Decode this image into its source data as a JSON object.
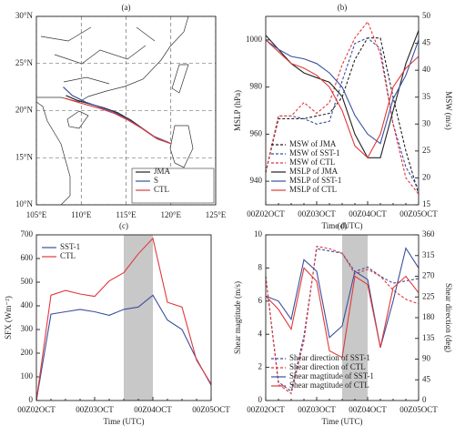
{
  "chart_data": [
    {
      "type": "map",
      "title": "(a)",
      "xlim": [
        105,
        125
      ],
      "ylim": [
        10,
        30
      ],
      "xticks": [
        {
          "value": 105,
          "label": "105°E"
        },
        {
          "value": 110,
          "label": "110°E"
        },
        {
          "value": 115,
          "label": "115°E"
        },
        {
          "value": 120,
          "label": "120°E"
        },
        {
          "value": 125,
          "label": "125°E"
        }
      ],
      "yticks": [
        {
          "value": 10,
          "label": "10°N"
        },
        {
          "value": 15,
          "label": "15°N"
        },
        {
          "value": 20,
          "label": "20°N"
        },
        {
          "value": 25,
          "label": "25°N"
        },
        {
          "value": 30,
          "label": "30°N"
        }
      ],
      "grid": true,
      "legend": "lower right",
      "series": [
        {
          "name": "JMA",
          "color": "#222222",
          "x": [
            120,
            118.5,
            117,
            115.5,
            114,
            112.5,
            111,
            109.5,
            108.3
          ],
          "values": [
            16.5,
            17.0,
            18.0,
            19.0,
            19.8,
            20.3,
            20.7,
            21.1,
            21.6
          ]
        },
        {
          "name": "S",
          "color": "#3a4f9e",
          "x": [
            119.8,
            118,
            116.5,
            115,
            113.5,
            112,
            110.5,
            109,
            108
          ],
          "values": [
            16.6,
            17.3,
            18.3,
            19.2,
            19.9,
            20.4,
            20.9,
            21.6,
            22.5
          ]
        },
        {
          "name": "CTL",
          "color": "#e0393b",
          "x": [
            120,
            118.3,
            116.8,
            115.2,
            113.7,
            112.2,
            110.7,
            109.2,
            108.2
          ],
          "values": [
            16.5,
            17.1,
            18.1,
            19.0,
            19.7,
            20.2,
            20.6,
            21.0,
            21.3
          ]
        }
      ]
    },
    {
      "type": "line",
      "title": "(b)",
      "xlabel": "Time (UTC)",
      "ylabel": "MSLP (hPa)",
      "y2label": "MSW (m/s)",
      "categories": [
        "00Z02OCT",
        null,
        null,
        null,
        "00Z03OCT",
        null,
        null,
        null,
        "00Z04OCT",
        null,
        null,
        null,
        "00Z05OCT"
      ],
      "ylim": [
        930,
        1010
      ],
      "yticks": [
        940,
        960,
        980,
        1000
      ],
      "y2lim": [
        15,
        50
      ],
      "y2ticks": [
        15,
        20,
        25,
        30,
        35,
        40,
        45,
        50
      ],
      "legend": "lower left",
      "series": [
        {
          "name": "MSW of JMA",
          "color": "#222222",
          "dash": true,
          "axis": "y2",
          "values": [
            21,
            31,
            31,
            31,
            31.5,
            32,
            35,
            42,
            46,
            46,
            35,
            25,
            17
          ]
        },
        {
          "name": "MSW of SST-1",
          "color": "#3a4f9e",
          "dash": true,
          "axis": "y2",
          "values": [
            21,
            31.5,
            31.5,
            31,
            30,
            30.5,
            38,
            45,
            46,
            44,
            30,
            22,
            18
          ]
        },
        {
          "name": "MSW of CTL",
          "color": "#e0393b",
          "dash": true,
          "axis": "y2",
          "values": [
            21,
            31.5,
            31.5,
            34,
            32,
            34,
            41,
            46,
            49,
            43,
            30,
            20,
            17
          ]
        },
        {
          "name": "MSLP of JMA",
          "color": "#222222",
          "values": [
            1002,
            996,
            990,
            986,
            984,
            982,
            976,
            960,
            950,
            950,
            970,
            990,
            1004
          ]
        },
        {
          "name": "MSLP of SST-1",
          "color": "#3a4f9e",
          "values": [
            1000,
            996,
            993,
            992,
            990,
            986,
            980,
            968,
            960,
            956,
            975,
            985,
            1000
          ]
        },
        {
          "name": "MSLP of CTL",
          "color": "#e0393b",
          "values": [
            1000,
            995,
            990,
            988,
            985,
            980,
            970,
            955,
            950,
            960,
            980,
            988,
            993
          ]
        }
      ]
    },
    {
      "type": "line",
      "title": "(c)",
      "xlabel": "Time (UTC)",
      "ylabel": "SFX (Wm⁻²)",
      "categories": [
        "00Z02OCT",
        null,
        null,
        null,
        "00Z03OCT",
        null,
        null,
        null,
        "00Z04OCT",
        null,
        null,
        null,
        "00Z05OCT"
      ],
      "ylim": [
        0,
        700
      ],
      "yticks": [
        0,
        100,
        200,
        300,
        400,
        500,
        600,
        700
      ],
      "shade": [
        6,
        8
      ],
      "legend": "upper left",
      "series": [
        {
          "name": "SST-1",
          "color": "#3a4f9e",
          "values": [
            0,
            365,
            375,
            385,
            375,
            360,
            385,
            395,
            445,
            340,
            300,
            175,
            65
          ]
        },
        {
          "name": "CTL",
          "color": "#e0393b",
          "values": [
            0,
            445,
            465,
            450,
            440,
            505,
            540,
            620,
            685,
            415,
            395,
            170,
            70
          ]
        }
      ]
    },
    {
      "type": "line",
      "title": "(d)",
      "xlabel": "Time (UTC)",
      "ylabel": "Shear magtitude (m/s)",
      "y2label": "Shear direction (deg)",
      "categories": [
        "00Z02OCT",
        null,
        null,
        null,
        "00Z03OCT",
        null,
        null,
        null,
        "00Z04OCT",
        null,
        null,
        null,
        "00Z05OCT"
      ],
      "ylim": [
        0,
        10
      ],
      "yticks": [
        0,
        2,
        4,
        6,
        8,
        10
      ],
      "y2lim": [
        0,
        360
      ],
      "y2ticks": [
        0,
        45,
        90,
        135,
        180,
        225,
        270,
        315,
        360
      ],
      "shade": [
        6,
        8
      ],
      "legend": "lower left",
      "series": [
        {
          "name": "Shear direction of SST-1",
          "color": "#3a4f9e",
          "dash": true,
          "axis": "y2",
          "values": [
            270,
            40,
            20,
            140,
            330,
            325,
            320,
            280,
            290,
            270,
            255,
            260,
            265
          ]
        },
        {
          "name": "Shear direction of CTL",
          "color": "#e0393b",
          "dash": true,
          "axis": "y2",
          "values": [
            270,
            35,
            15,
            130,
            335,
            330,
            320,
            275,
            285,
            270,
            240,
            220,
            210
          ]
        },
        {
          "name": "Shear magtitude of SST-1",
          "color": "#3a4f9e",
          "values": [
            6.3,
            6,
            4.9,
            8.5,
            7.8,
            3.8,
            4.5,
            7.8,
            7.3,
            3.2,
            6,
            9.2,
            8
          ]
        },
        {
          "name": "Shear magtitude of CTL",
          "color": "#e0393b",
          "values": [
            6.3,
            5.5,
            4.3,
            8,
            7.2,
            3,
            2.6,
            7.5,
            7,
            3.2,
            6.8,
            7.5,
            6.5
          ]
        }
      ]
    }
  ]
}
